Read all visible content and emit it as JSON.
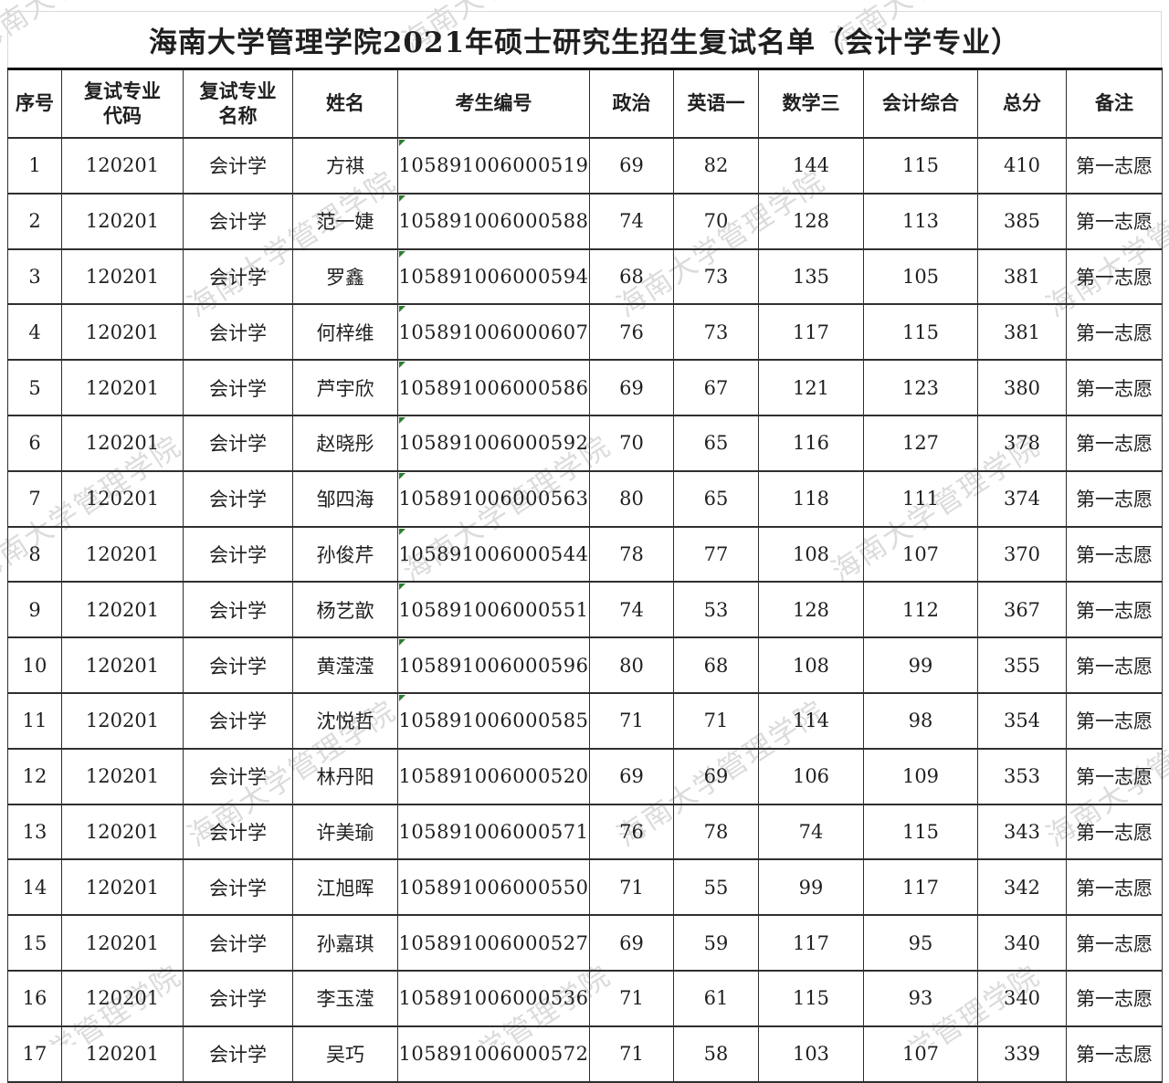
{
  "page": {
    "title": "海南大学管理学院2021年硕士研究生招生复试名单（会计学专业）"
  },
  "watermark": {
    "text": "海南大学管理学院",
    "color": "rgba(145,145,145,0.33)"
  },
  "marker": {
    "name": "green-corner-marker",
    "color": "#2e7d32"
  },
  "table": {
    "headers": [
      "序号",
      "复试专业\n代码",
      "复试专业\n名称",
      "姓名",
      "考生编号",
      "政治",
      "英语一",
      "数学三",
      "会计综合",
      "总分",
      "备注"
    ],
    "rows": [
      {
        "no": "1",
        "code": "120201",
        "major": "会计学",
        "name": "方祺",
        "id": "105891006000519",
        "politics": "69",
        "english": "82",
        "math": "144",
        "accounting": "115",
        "total": "410",
        "remark": "第一志愿",
        "flag": true
      },
      {
        "no": "2",
        "code": "120201",
        "major": "会计学",
        "name": "范一婕",
        "id": "105891006000588",
        "politics": "74",
        "english": "70",
        "math": "128",
        "accounting": "113",
        "total": "385",
        "remark": "第一志愿",
        "flag": true
      },
      {
        "no": "3",
        "code": "120201",
        "major": "会计学",
        "name": "罗鑫",
        "id": "105891006000594",
        "politics": "68",
        "english": "73",
        "math": "135",
        "accounting": "105",
        "total": "381",
        "remark": "第一志愿",
        "flag": true
      },
      {
        "no": "4",
        "code": "120201",
        "major": "会计学",
        "name": "何梓维",
        "id": "105891006000607",
        "politics": "76",
        "english": "73",
        "math": "117",
        "accounting": "115",
        "total": "381",
        "remark": "第一志愿",
        "flag": true
      },
      {
        "no": "5",
        "code": "120201",
        "major": "会计学",
        "name": "芦宇欣",
        "id": "105891006000586",
        "politics": "69",
        "english": "67",
        "math": "121",
        "accounting": "123",
        "total": "380",
        "remark": "第一志愿",
        "flag": true
      },
      {
        "no": "6",
        "code": "120201",
        "major": "会计学",
        "name": "赵晓彤",
        "id": "105891006000592",
        "politics": "70",
        "english": "65",
        "math": "116",
        "accounting": "127",
        "total": "378",
        "remark": "第一志愿",
        "flag": true
      },
      {
        "no": "7",
        "code": "120201",
        "major": "会计学",
        "name": "邹四海",
        "id": "105891006000563",
        "politics": "80",
        "english": "65",
        "math": "118",
        "accounting": "111",
        "total": "374",
        "remark": "第一志愿",
        "flag": true
      },
      {
        "no": "8",
        "code": "120201",
        "major": "会计学",
        "name": "孙俊芹",
        "id": "105891006000544",
        "politics": "78",
        "english": "77",
        "math": "108",
        "accounting": "107",
        "total": "370",
        "remark": "第一志愿",
        "flag": true
      },
      {
        "no": "9",
        "code": "120201",
        "major": "会计学",
        "name": "杨艺歆",
        "id": "105891006000551",
        "politics": "74",
        "english": "53",
        "math": "128",
        "accounting": "112",
        "total": "367",
        "remark": "第一志愿",
        "flag": true
      },
      {
        "no": "10",
        "code": "120201",
        "major": "会计学",
        "name": "黄滢滢",
        "id": "105891006000596",
        "politics": "80",
        "english": "68",
        "math": "108",
        "accounting": "99",
        "total": "355",
        "remark": "第一志愿",
        "flag": true
      },
      {
        "no": "11",
        "code": "120201",
        "major": "会计学",
        "name": "沈悦哲",
        "id": "105891006000585",
        "politics": "71",
        "english": "71",
        "math": "114",
        "accounting": "98",
        "total": "354",
        "remark": "第一志愿",
        "flag": true
      },
      {
        "no": "12",
        "code": "120201",
        "major": "会计学",
        "name": "林丹阳",
        "id": "105891006000520",
        "politics": "69",
        "english": "69",
        "math": "106",
        "accounting": "109",
        "total": "353",
        "remark": "第一志愿",
        "flag": false
      },
      {
        "no": "13",
        "code": "120201",
        "major": "会计学",
        "name": "许美瑜",
        "id": "105891006000571",
        "politics": "76",
        "english": "78",
        "math": "74",
        "accounting": "115",
        "total": "343",
        "remark": "第一志愿",
        "flag": false
      },
      {
        "no": "14",
        "code": "120201",
        "major": "会计学",
        "name": "江旭晖",
        "id": "105891006000550",
        "politics": "71",
        "english": "55",
        "math": "99",
        "accounting": "117",
        "total": "342",
        "remark": "第一志愿",
        "flag": false
      },
      {
        "no": "15",
        "code": "120201",
        "major": "会计学",
        "name": "孙嘉琪",
        "id": "105891006000527",
        "politics": "69",
        "english": "59",
        "math": "117",
        "accounting": "95",
        "total": "340",
        "remark": "第一志愿",
        "flag": false
      },
      {
        "no": "16",
        "code": "120201",
        "major": "会计学",
        "name": "李玉滢",
        "id": "105891006000536",
        "politics": "71",
        "english": "61",
        "math": "115",
        "accounting": "93",
        "total": "340",
        "remark": "第一志愿",
        "flag": false
      },
      {
        "no": "17",
        "code": "120201",
        "major": "会计学",
        "name": "吴巧",
        "id": "105891006000572",
        "politics": "71",
        "english": "58",
        "math": "103",
        "accounting": "107",
        "total": "339",
        "remark": "第一志愿",
        "flag": false
      }
    ]
  }
}
